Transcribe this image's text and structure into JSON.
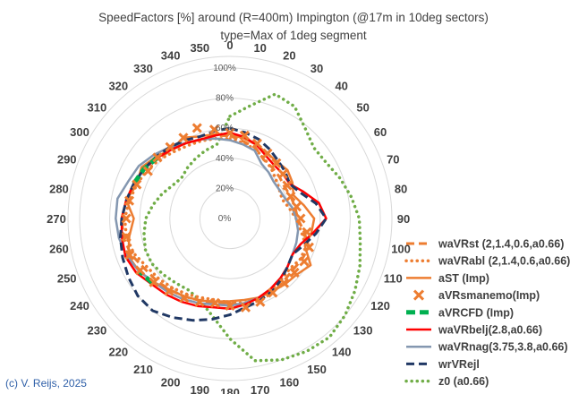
{
  "chart_data": {
    "type": "radar",
    "title": "SpeedFactors [%] around (R=400m) Impington (@17m in 10deg sectors)",
    "subtitle": "type=Max of 1deg segment",
    "angles": [
      0,
      10,
      20,
      30,
      40,
      50,
      60,
      70,
      80,
      90,
      100,
      110,
      120,
      130,
      140,
      150,
      160,
      170,
      180,
      190,
      200,
      210,
      220,
      230,
      240,
      250,
      260,
      270,
      280,
      290,
      300,
      310,
      320,
      330,
      340,
      350
    ],
    "radial_ticks": [
      "0%",
      "20%",
      "40%",
      "60%",
      "80%",
      "100%"
    ],
    "rlim": [
      0,
      100
    ],
    "legend_position": "right",
    "series": [
      {
        "name": "waVRst (2,1.4,0.6,a0.66)",
        "color": "#ed7d31",
        "style": "dash",
        "values": [
          55,
          52,
          50,
          45,
          44,
          43,
          42,
          43,
          44,
          45,
          50,
          56,
          55,
          54,
          55,
          57,
          58,
          58,
          57,
          57,
          58,
          60,
          62,
          64,
          66,
          70,
          72,
          72,
          70,
          68,
          66,
          62,
          60,
          58,
          56,
          56
        ]
      },
      {
        "name": "waVRabl (2,1.4,0.6,a0.66)",
        "color": "#ed7d31",
        "style": "dot",
        "values": [
          53,
          51,
          49,
          46,
          43,
          40,
          38,
          37,
          40,
          44,
          48,
          54,
          54,
          52,
          53,
          55,
          56,
          57,
          56,
          55,
          56,
          58,
          60,
          62,
          64,
          68,
          70,
          70,
          68,
          66,
          64,
          61,
          58,
          56,
          55,
          54
        ]
      },
      {
        "name": "aST (Imp)",
        "color": "#ed7d31",
        "style": "solid",
        "values": [
          56,
          54,
          52,
          50,
          49,
          50,
          48,
          45,
          50,
          56,
          55,
          53,
          62,
          58,
          57,
          56,
          56,
          55,
          55,
          56,
          58,
          60,
          62,
          66,
          70,
          72,
          68,
          64,
          70,
          66,
          68,
          64,
          60,
          62,
          58,
          57
        ]
      },
      {
        "name": "aVRsmanemo(Imp)",
        "color": "#ed7d31",
        "style": "marker",
        "values": [
          57,
          56,
          53,
          50,
          48,
          46,
          44,
          43,
          45,
          47,
          52,
          56,
          57,
          56,
          56,
          57,
          59,
          60,
          58,
          57,
          59,
          61,
          63,
          66,
          69,
          71,
          70,
          69,
          68,
          66,
          63,
          63,
          62,
          62,
          64,
          60
        ]
      },
      {
        "name": "aVRCFD (Imp)",
        "color": "#00b050",
        "style": "dashthick",
        "values": [
          null,
          null,
          null,
          null,
          null,
          null,
          null,
          null,
          null,
          null,
          null,
          null,
          null,
          null,
          null,
          null,
          null,
          null,
          null,
          null,
          null,
          null,
          null,
          67,
          70,
          null,
          null,
          null,
          null,
          68,
          66,
          63,
          null,
          null,
          null,
          null
        ]
      },
      {
        "name": "waVRbelj(2.8,a0.66)",
        "color": "#ff0000",
        "style": "solid",
        "values": [
          57,
          55,
          52,
          48,
          46,
          46,
          46,
          52,
          60,
          64,
          56,
          50,
          48,
          50,
          52,
          54,
          56,
          58,
          60,
          60,
          62,
          64,
          66,
          68,
          72,
          74,
          73,
          72,
          70,
          68,
          66,
          63,
          60,
          58,
          56,
          56
        ]
      },
      {
        "name": "waVRnag(3.75,3.8,a0.66)",
        "color": "#8497b0",
        "style": "solid",
        "values": [
          52,
          50,
          48,
          42,
          40,
          38,
          38,
          39,
          42,
          44,
          46,
          47,
          48,
          50,
          52,
          54,
          56,
          57,
          58,
          58,
          60,
          62,
          64,
          66,
          70,
          73,
          75,
          76,
          76,
          72,
          70,
          66,
          62,
          58,
          56,
          54
        ]
      },
      {
        "name": "wrVRejl",
        "color": "#203864",
        "style": "dash",
        "values": [
          60,
          58,
          56,
          53,
          50,
          48,
          46,
          50,
          58,
          64,
          58,
          52,
          48,
          50,
          53,
          56,
          58,
          60,
          64,
          68,
          72,
          76,
          80,
          80,
          78,
          76,
          74,
          72,
          70,
          68,
          66,
          64,
          62,
          60,
          58,
          59
        ]
      },
      {
        "name": "z0 (a0.66)",
        "color": "#70ad47",
        "style": "dot",
        "values": [
          68,
          76,
          88,
          86,
          78,
          73,
          74,
          78,
          82,
          86,
          88,
          92,
          96,
          100,
          103,
          102,
          100,
          96,
          80,
          66,
          58,
          55,
          56,
          58,
          60,
          60,
          58,
          56,
          52,
          48,
          44,
          42,
          44,
          46,
          48,
          50
        ]
      }
    ]
  },
  "credit": "(c) V. Reijs, 2025"
}
